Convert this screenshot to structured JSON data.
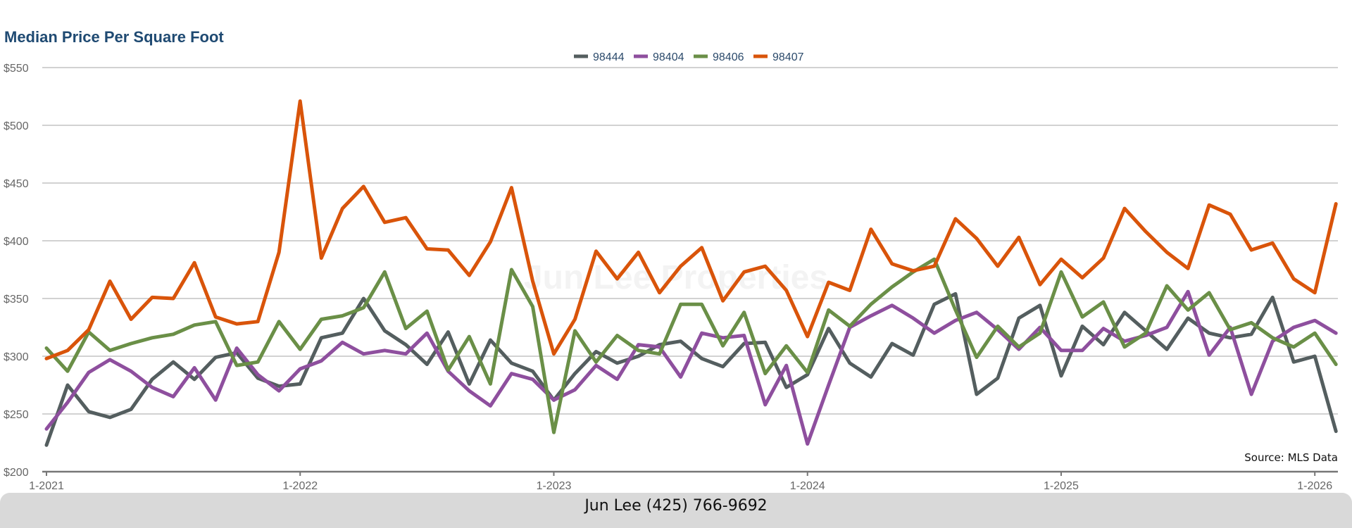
{
  "chart_data": {
    "type": "line",
    "title": "Median Price Per Square Foot",
    "xlabel": "",
    "ylabel": "",
    "ylim": [
      200,
      550
    ],
    "yticks": [
      200,
      250,
      300,
      350,
      400,
      450,
      500,
      550
    ],
    "ytick_labels": [
      "$200",
      "$250",
      "$300",
      "$350",
      "$400",
      "$450",
      "$500",
      "$550"
    ],
    "x_start": "1-2021",
    "x_count_months": 62,
    "xtick_labels": [
      "1-2021",
      "1-2022",
      "1-2023",
      "1-2024",
      "1-2025",
      "1-2026"
    ],
    "grid": true,
    "legend_position": "top-center",
    "watermark": "Jun Lee Properties",
    "annotation": "Source: MLS Data",
    "series": [
      {
        "name": "98444",
        "color": "#545e5f",
        "values": [
          223,
          275,
          252,
          247,
          254,
          280,
          295,
          280,
          299,
          303,
          281,
          274,
          276,
          316,
          320,
          350,
          322,
          310,
          293,
          321,
          276,
          314,
          294,
          287,
          262,
          285,
          304,
          294,
          300,
          310,
          313,
          298,
          291,
          311,
          312,
          273,
          284,
          324,
          294,
          282,
          311,
          301,
          345,
          354,
          267,
          281,
          333,
          344,
          283,
          326,
          310,
          338,
          322,
          306,
          333,
          320,
          316,
          319,
          351,
          295,
          300,
          235
        ]
      },
      {
        "name": "98404",
        "color": "#8e4f9e",
        "values": [
          237,
          260,
          286,
          297,
          287,
          273,
          265,
          290,
          262,
          307,
          284,
          270,
          289,
          296,
          312,
          302,
          305,
          302,
          320,
          287,
          270,
          257,
          285,
          280,
          262,
          271,
          292,
          280,
          310,
          308,
          282,
          320,
          316,
          318,
          258,
          292,
          224,
          275,
          325,
          335,
          344,
          333,
          320,
          331,
          338,
          323,
          306,
          325,
          305,
          305,
          324,
          313,
          318,
          325,
          356,
          301,
          325,
          267,
          313,
          325,
          331,
          320
        ]
      },
      {
        "name": "98406",
        "color": "#6a8f47",
        "values": [
          307,
          287,
          321,
          305,
          311,
          316,
          319,
          327,
          330,
          292,
          295,
          330,
          306,
          332,
          335,
          342,
          373,
          324,
          339,
          288,
          317,
          276,
          375,
          343,
          234,
          322,
          295,
          318,
          305,
          302,
          345,
          345,
          309,
          338,
          285,
          309,
          286,
          340,
          326,
          345,
          360,
          373,
          384,
          340,
          299,
          326,
          308,
          320,
          373,
          334,
          347,
          308,
          320,
          361,
          340,
          355,
          323,
          329,
          316,
          308,
          320,
          293
        ]
      },
      {
        "name": "98407",
        "color": "#d9540a",
        "values": [
          298,
          305,
          323,
          365,
          332,
          351,
          350,
          381,
          334,
          328,
          330,
          390,
          521,
          385,
          428,
          447,
          416,
          420,
          393,
          392,
          370,
          399,
          446,
          365,
          302,
          332,
          391,
          367,
          390,
          355,
          378,
          394,
          348,
          373,
          378,
          357,
          317,
          364,
          357,
          410,
          380,
          374,
          378,
          419,
          402,
          378,
          403,
          362,
          384,
          368,
          385,
          428,
          408,
          390,
          376,
          431,
          423,
          392,
          398,
          367,
          355,
          432
        ]
      }
    ]
  },
  "footer": {
    "contact": "Jun Lee (425) 766-9692"
  }
}
